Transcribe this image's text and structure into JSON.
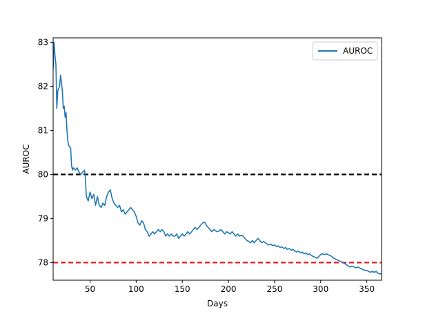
{
  "chart_data": {
    "type": "line",
    "title": "",
    "xlabel": "Days",
    "ylabel": "AUROC",
    "xlim": [
      10,
      366
    ],
    "ylim": [
      77.6,
      83.1
    ],
    "xticks": [
      50,
      100,
      150,
      200,
      250,
      300,
      350
    ],
    "yticks": [
      78,
      79,
      80,
      81,
      82,
      83
    ],
    "grid": false,
    "legend": {
      "position": "top-right",
      "entries": [
        "AUROC"
      ]
    },
    "series": [
      {
        "name": "AUROC",
        "color": "#1f77b4",
        "points": [
          [
            10,
            82.4
          ],
          [
            11,
            83.0
          ],
          [
            12,
            82.7
          ],
          [
            13,
            82.5
          ],
          [
            14,
            81.5
          ],
          [
            15,
            81.9
          ],
          [
            17,
            82.0
          ],
          [
            18,
            82.25
          ],
          [
            19,
            82.1
          ],
          [
            20,
            81.9
          ],
          [
            21,
            81.5
          ],
          [
            22,
            81.55
          ],
          [
            23,
            81.3
          ],
          [
            24,
            81.4
          ],
          [
            25,
            81.0
          ],
          [
            26,
            80.75
          ],
          [
            27,
            80.65
          ],
          [
            29,
            80.6
          ],
          [
            30,
            80.2
          ],
          [
            31,
            80.1
          ],
          [
            32,
            80.15
          ],
          [
            34,
            80.1
          ],
          [
            36,
            80.15
          ],
          [
            38,
            80.05
          ],
          [
            40,
            80.0
          ],
          [
            42,
            80.05
          ],
          [
            44,
            80.1
          ],
          [
            45,
            79.9
          ],
          [
            46,
            79.5
          ],
          [
            48,
            79.4
          ],
          [
            50,
            79.6
          ],
          [
            52,
            79.45
          ],
          [
            54,
            79.55
          ],
          [
            56,
            79.3
          ],
          [
            58,
            79.5
          ],
          [
            60,
            79.3
          ],
          [
            62,
            79.25
          ],
          [
            64,
            79.35
          ],
          [
            66,
            79.3
          ],
          [
            68,
            79.5
          ],
          [
            70,
            79.6
          ],
          [
            72,
            79.65
          ],
          [
            74,
            79.45
          ],
          [
            76,
            79.35
          ],
          [
            78,
            79.3
          ],
          [
            80,
            79.25
          ],
          [
            82,
            79.3
          ],
          [
            84,
            79.15
          ],
          [
            86,
            79.2
          ],
          [
            88,
            79.1
          ],
          [
            90,
            79.15
          ],
          [
            92,
            79.2
          ],
          [
            94,
            79.25
          ],
          [
            96,
            79.2
          ],
          [
            98,
            79.15
          ],
          [
            100,
            79.05
          ],
          [
            102,
            78.9
          ],
          [
            104,
            78.85
          ],
          [
            106,
            78.95
          ],
          [
            108,
            78.9
          ],
          [
            110,
            78.75
          ],
          [
            112,
            78.7
          ],
          [
            114,
            78.6
          ],
          [
            116,
            78.65
          ],
          [
            118,
            78.7
          ],
          [
            120,
            78.65
          ],
          [
            122,
            78.7
          ],
          [
            124,
            78.75
          ],
          [
            126,
            78.7
          ],
          [
            128,
            78.75
          ],
          [
            130,
            78.7
          ],
          [
            132,
            78.6
          ],
          [
            134,
            78.65
          ],
          [
            136,
            78.6
          ],
          [
            138,
            78.65
          ],
          [
            140,
            78.6
          ],
          [
            142,
            78.6
          ],
          [
            144,
            78.65
          ],
          [
            146,
            78.55
          ],
          [
            148,
            78.6
          ],
          [
            150,
            78.65
          ],
          [
            152,
            78.6
          ],
          [
            154,
            78.65
          ],
          [
            156,
            78.7
          ],
          [
            158,
            78.65
          ],
          [
            160,
            78.7
          ],
          [
            162,
            78.75
          ],
          [
            164,
            78.8
          ],
          [
            166,
            78.75
          ],
          [
            168,
            78.8
          ],
          [
            170,
            78.85
          ],
          [
            172,
            78.9
          ],
          [
            174,
            78.92
          ],
          [
            176,
            78.85
          ],
          [
            178,
            78.8
          ],
          [
            180,
            78.75
          ],
          [
            182,
            78.7
          ],
          [
            184,
            78.75
          ],
          [
            186,
            78.72
          ],
          [
            188,
            78.7
          ],
          [
            190,
            78.72
          ],
          [
            192,
            78.75
          ],
          [
            194,
            78.7
          ],
          [
            196,
            78.65
          ],
          [
            198,
            78.7
          ],
          [
            200,
            78.68
          ],
          [
            202,
            78.65
          ],
          [
            204,
            78.7
          ],
          [
            206,
            78.65
          ],
          [
            208,
            78.6
          ],
          [
            210,
            78.65
          ],
          [
            212,
            78.6
          ],
          [
            214,
            78.62
          ],
          [
            216,
            78.6
          ],
          [
            218,
            78.55
          ],
          [
            220,
            78.5
          ],
          [
            222,
            78.48
          ],
          [
            224,
            78.45
          ],
          [
            226,
            78.5
          ],
          [
            228,
            78.45
          ],
          [
            230,
            78.5
          ],
          [
            232,
            78.55
          ],
          [
            234,
            78.5
          ],
          [
            236,
            78.45
          ],
          [
            238,
            78.48
          ],
          [
            240,
            78.45
          ],
          [
            242,
            78.42
          ],
          [
            244,
            78.4
          ],
          [
            246,
            78.42
          ],
          [
            248,
            78.38
          ],
          [
            250,
            78.4
          ],
          [
            252,
            78.36
          ],
          [
            254,
            78.38
          ],
          [
            256,
            78.34
          ],
          [
            258,
            78.36
          ],
          [
            260,
            78.32
          ],
          [
            262,
            78.34
          ],
          [
            264,
            78.3
          ],
          [
            266,
            78.32
          ],
          [
            268,
            78.28
          ],
          [
            270,
            78.3
          ],
          [
            272,
            78.26
          ],
          [
            274,
            78.24
          ],
          [
            276,
            78.26
          ],
          [
            278,
            78.22
          ],
          [
            280,
            78.24
          ],
          [
            282,
            78.2
          ],
          [
            284,
            78.22
          ],
          [
            286,
            78.18
          ],
          [
            288,
            78.2
          ],
          [
            290,
            78.16
          ],
          [
            292,
            78.14
          ],
          [
            294,
            78.12
          ],
          [
            296,
            78.1
          ],
          [
            298,
            78.14
          ],
          [
            300,
            78.18
          ],
          [
            302,
            78.2
          ],
          [
            304,
            78.18
          ],
          [
            306,
            78.2
          ],
          [
            308,
            78.18
          ],
          [
            310,
            78.16
          ],
          [
            312,
            78.14
          ],
          [
            314,
            78.1
          ],
          [
            316,
            78.08
          ],
          [
            318,
            78.06
          ],
          [
            320,
            78.04
          ],
          [
            322,
            78.02
          ],
          [
            324,
            78.0
          ],
          [
            326,
            77.98
          ],
          [
            328,
            77.95
          ],
          [
            330,
            77.92
          ],
          [
            332,
            77.9
          ],
          [
            334,
            77.92
          ],
          [
            336,
            77.9
          ],
          [
            338,
            77.88
          ],
          [
            340,
            77.9
          ],
          [
            342,
            77.88
          ],
          [
            344,
            77.86
          ],
          [
            346,
            77.84
          ],
          [
            348,
            77.82
          ],
          [
            350,
            77.82
          ],
          [
            352,
            77.8
          ],
          [
            354,
            77.78
          ],
          [
            356,
            77.8
          ],
          [
            358,
            77.78
          ],
          [
            360,
            77.8
          ],
          [
            362,
            77.76
          ],
          [
            364,
            77.74
          ],
          [
            366,
            77.75
          ]
        ]
      }
    ],
    "reference_lines": [
      {
        "y": 80,
        "color": "#000000",
        "style": "dashed"
      },
      {
        "y": 78,
        "color": "#e41a1c",
        "style": "dashed"
      }
    ]
  }
}
